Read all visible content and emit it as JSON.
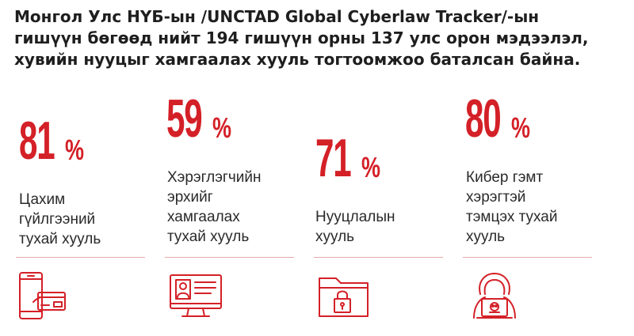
{
  "headline": {
    "line1": "Монгол Улс НҮБ-ын /UNCTAD Global Cyberlaw Tracker/-ын",
    "line2": "гишүүн бөгөөд нийт 194 гишүүн орны 137 улс орон мэдээлэл,",
    "line3": "хувийн нууцыг хамгаалах хууль тогтоомжоо баталсан байна."
  },
  "accent_color": "#d42027",
  "stats": [
    {
      "value": "81",
      "unit": "%",
      "lines": [
        "Цахим",
        "гүйлгээний",
        "тухай хууль"
      ],
      "icon": "mobile-payment-icon"
    },
    {
      "value": "59",
      "unit": "%",
      "lines": [
        "Хэрэглэгчийн",
        "эрхийг",
        "хамгаалах",
        "тухай хууль"
      ],
      "icon": "consumer-profile-icon"
    },
    {
      "value": "71",
      "unit": "%",
      "lines": [
        "Нууцлалын",
        "хууль"
      ],
      "icon": "locked-folder-icon"
    },
    {
      "value": "80",
      "unit": "%",
      "lines": [
        "Кибер гэмт",
        "хэрэгтэй",
        "тэмцэх тухай",
        "хууль"
      ],
      "icon": "hacker-icon"
    }
  ]
}
